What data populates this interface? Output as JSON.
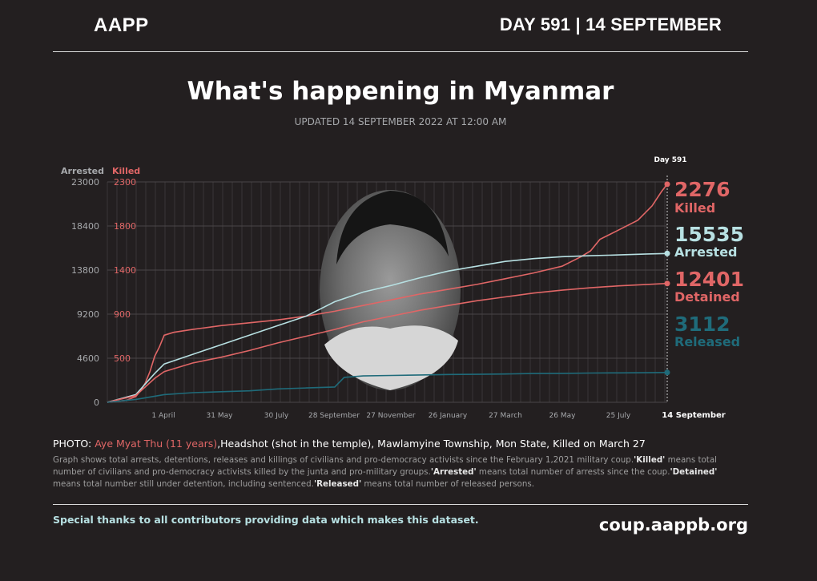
{
  "header": {
    "org": "AAPP",
    "day_label": "DAY 591 | 14 SEPTEMBER"
  },
  "title": "What's happening in Myanmar",
  "subtitle": "UPDATED 14 SEPTEMBER 2022 AT 12:00 AM",
  "chart_data": {
    "type": "line",
    "left_axis": {
      "label": "Arrested",
      "ticks": [
        "23000",
        "18400",
        "13800",
        "9200",
        "4600",
        "0"
      ],
      "range": [
        0,
        23000
      ]
    },
    "right_axis": {
      "label": "Killed",
      "ticks": [
        "2300",
        "1800",
        "1400",
        "900",
        "500"
      ],
      "range": [
        0,
        2300
      ]
    },
    "x_ticks": [
      "1 April",
      "31 May",
      "30 July",
      "28 September",
      "27 November",
      "26 January",
      "27 March",
      "26 May",
      "25 July"
    ],
    "day_marker": {
      "label": "Day 591",
      "date": "14 September"
    },
    "total_days": 591,
    "grid": true,
    "series": [
      {
        "name": "Killed",
        "axis": "right",
        "final": "2276",
        "color": "#e06666",
        "points": [
          [
            0,
            0
          ],
          [
            20,
            20
          ],
          [
            30,
            60
          ],
          [
            35,
            120
          ],
          [
            40,
            200
          ],
          [
            45,
            320
          ],
          [
            50,
            480
          ],
          [
            55,
            580
          ],
          [
            60,
            700
          ],
          [
            70,
            730
          ],
          [
            90,
            760
          ],
          [
            120,
            800
          ],
          [
            150,
            830
          ],
          [
            180,
            860
          ],
          [
            210,
            900
          ],
          [
            240,
            950
          ],
          [
            270,
            1010
          ],
          [
            300,
            1070
          ],
          [
            330,
            1130
          ],
          [
            360,
            1180
          ],
          [
            390,
            1230
          ],
          [
            420,
            1290
          ],
          [
            450,
            1350
          ],
          [
            480,
            1420
          ],
          [
            500,
            1520
          ],
          [
            510,
            1580
          ],
          [
            520,
            1700
          ],
          [
            540,
            1800
          ],
          [
            560,
            1900
          ],
          [
            575,
            2050
          ],
          [
            585,
            2200
          ],
          [
            591,
            2276
          ]
        ]
      },
      {
        "name": "Arrested",
        "axis": "left",
        "final": "15535",
        "color": "#b7e0e2",
        "points": [
          [
            0,
            0
          ],
          [
            30,
            800
          ],
          [
            50,
            3000
          ],
          [
            60,
            4000
          ],
          [
            90,
            5000
          ],
          [
            120,
            6000
          ],
          [
            150,
            7000
          ],
          [
            180,
            8000
          ],
          [
            210,
            9000
          ],
          [
            240,
            10500
          ],
          [
            270,
            11500
          ],
          [
            300,
            12200
          ],
          [
            330,
            13000
          ],
          [
            360,
            13700
          ],
          [
            390,
            14200
          ],
          [
            420,
            14700
          ],
          [
            450,
            15000
          ],
          [
            480,
            15200
          ],
          [
            510,
            15300
          ],
          [
            540,
            15380
          ],
          [
            570,
            15480
          ],
          [
            591,
            15535
          ]
        ]
      },
      {
        "name": "Detained",
        "axis": "left",
        "final": "12401",
        "color": "#e06666",
        "points": [
          [
            0,
            0
          ],
          [
            30,
            700
          ],
          [
            50,
            2500
          ],
          [
            60,
            3200
          ],
          [
            90,
            4100
          ],
          [
            120,
            4700
          ],
          [
            150,
            5400
          ],
          [
            180,
            6200
          ],
          [
            210,
            6900
          ],
          [
            240,
            7600
          ],
          [
            270,
            8400
          ],
          [
            300,
            9000
          ],
          [
            330,
            9600
          ],
          [
            360,
            10100
          ],
          [
            390,
            10600
          ],
          [
            420,
            11000
          ],
          [
            450,
            11400
          ],
          [
            480,
            11700
          ],
          [
            510,
            11950
          ],
          [
            540,
            12150
          ],
          [
            570,
            12300
          ],
          [
            591,
            12401
          ]
        ]
      },
      {
        "name": "Released",
        "axis": "left",
        "final": "3112",
        "color": "#1f6b7a",
        "points": [
          [
            0,
            0
          ],
          [
            30,
            300
          ],
          [
            60,
            800
          ],
          [
            90,
            1000
          ],
          [
            120,
            1100
          ],
          [
            150,
            1200
          ],
          [
            180,
            1400
          ],
          [
            210,
            1500
          ],
          [
            240,
            1600
          ],
          [
            250,
            2600
          ],
          [
            270,
            2750
          ],
          [
            300,
            2800
          ],
          [
            330,
            2850
          ],
          [
            360,
            2900
          ],
          [
            390,
            2920
          ],
          [
            420,
            2950
          ],
          [
            450,
            3000
          ],
          [
            480,
            3020
          ],
          [
            510,
            3050
          ],
          [
            540,
            3070
          ],
          [
            570,
            3090
          ],
          [
            591,
            3112
          ]
        ]
      }
    ]
  },
  "caption": {
    "photo_prefix": "PHOTO: ",
    "victim": "Aye Myat Thu (11 years)",
    "photo_rest": ",Headshot (shot in the temple), Mawlamyine Township, Mon State, Killed on March 27",
    "desc_1": "Graph shows total arrests, detentions, releases and killings of civilians and pro-democracy activists since the February 1,2021 military coup.",
    "killed_term": "'Killed'",
    "desc_2": " means total number of civilians and pro-democracy activists killed by the junta and pro-military groups.",
    "arrested_term": "'Arrested'",
    "desc_3": " means total number of arrests since the coup.",
    "detained_term": "'Detained'",
    "desc_4": " means total number still under detention, including sentenced.",
    "released_term": "'Released'",
    "desc_5": " means total number of released persons."
  },
  "footer": {
    "thanks": "Special thanks to all contributors providing data which makes this dataset.",
    "website": "coup.aappb.org"
  }
}
